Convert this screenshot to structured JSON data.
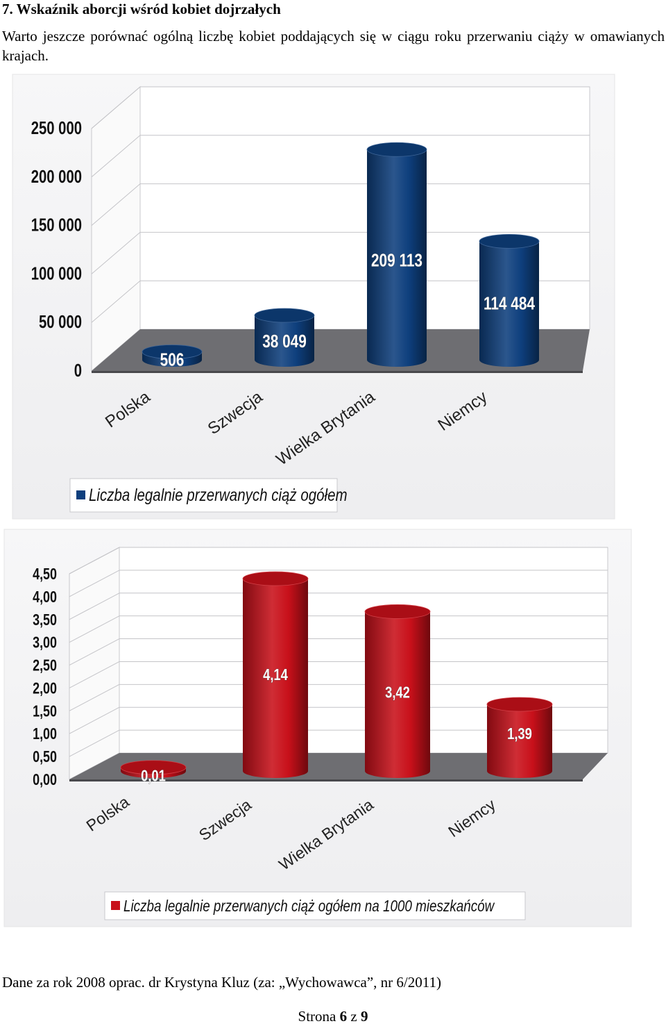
{
  "heading": "7. Wskaźnik aborcji wśród kobiet dojrzałych",
  "intro": "Warto jeszcze porównać ogólną liczbę kobiet poddających się w ciągu roku przerwaniu ciąży w omawianych krajach.",
  "chart_data": [
    {
      "type": "bar",
      "categories": [
        "Polska",
        "Szwecja",
        "Wielka Brytania",
        "Niemcy"
      ],
      "values": [
        506,
        38049,
        209113,
        114484
      ],
      "value_labels": [
        "506",
        "38 049",
        "209 113",
        "114 484"
      ],
      "yticks": [
        "0",
        "50 000",
        "100 000",
        "150 000",
        "200 000",
        "250 000"
      ],
      "ylim": [
        0,
        250000
      ],
      "legend": "Liczba legalnie przerwanych ciąż ogółem",
      "legend_position": "bottom",
      "color": "#0e3f7d",
      "grid": true,
      "style": "3d-cylinder"
    },
    {
      "type": "bar",
      "categories": [
        "Polska",
        "Szwecja",
        "Wielka Brytania",
        "Niemcy"
      ],
      "values": [
        0.01,
        4.14,
        3.42,
        1.39
      ],
      "value_labels": [
        "0,01",
        "4,14",
        "3,42",
        "1,39"
      ],
      "yticks": [
        "0,00",
        "0,50",
        "1,00",
        "1,50",
        "2,00",
        "2,50",
        "3,00",
        "3,50",
        "4,00",
        "4,50"
      ],
      "ylim": [
        0,
        4.5
      ],
      "legend": "Liczba legalnie przerwanych ciąż ogółem na 1000 mieszkańców",
      "legend_position": "bottom",
      "color": "#c8101a",
      "grid": true,
      "style": "3d-cylinder"
    }
  ],
  "source_note": "Dane za rok 2008 oprac. dr Krystyna Kluz (za: „Wychowawca”, nr 6/2011)",
  "footer": {
    "prefix": "Strona",
    "page": "6",
    "sep": "z",
    "total": "9"
  }
}
